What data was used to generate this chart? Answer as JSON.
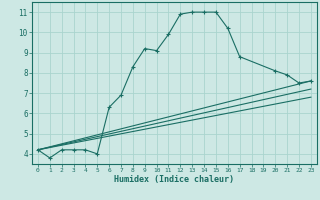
{
  "xlabel": "Humidex (Indice chaleur)",
  "bg_color": "#cde8e4",
  "grid_color": "#aad4ce",
  "line_color": "#1a6e64",
  "xlim": [
    -0.5,
    23.5
  ],
  "ylim": [
    3.5,
    11.5
  ],
  "xtick_vals": [
    0,
    1,
    2,
    3,
    4,
    5,
    6,
    7,
    8,
    9,
    10,
    11,
    12,
    13,
    14,
    15,
    16,
    17,
    18,
    19,
    20,
    21,
    22,
    23
  ],
  "xtick_labels": [
    "0",
    "1",
    "2",
    "3",
    "4",
    "5",
    "6",
    "7",
    "8",
    "9",
    "10",
    "11",
    "12",
    "13",
    "14",
    "15",
    "16",
    "17",
    "18",
    "19",
    "20",
    "21",
    "22",
    "23"
  ],
  "ytick_vals": [
    4,
    5,
    6,
    7,
    8,
    9,
    10,
    11
  ],
  "ytick_labels": [
    "4",
    "5",
    "6",
    "7",
    "8",
    "9",
    "10",
    "11"
  ],
  "series": [
    {
      "x": [
        0,
        1,
        2,
        3,
        4,
        5,
        6,
        7,
        8,
        9,
        10,
        11,
        12,
        13,
        14,
        15,
        16,
        17,
        20,
        21,
        22,
        23
      ],
      "y": [
        4.2,
        3.8,
        4.2,
        4.2,
        4.2,
        4.0,
        6.3,
        6.9,
        8.3,
        9.2,
        9.1,
        9.9,
        10.9,
        11.0,
        11.0,
        11.0,
        10.2,
        8.8,
        8.1,
        7.9,
        7.5,
        7.6
      ],
      "has_markers": true
    },
    {
      "x": [
        0,
        23
      ],
      "y": [
        4.2,
        7.6
      ],
      "has_markers": false
    },
    {
      "x": [
        0,
        23
      ],
      "y": [
        4.2,
        7.2
      ],
      "has_markers": false
    },
    {
      "x": [
        0,
        23
      ],
      "y": [
        4.2,
        6.8
      ],
      "has_markers": false
    }
  ]
}
